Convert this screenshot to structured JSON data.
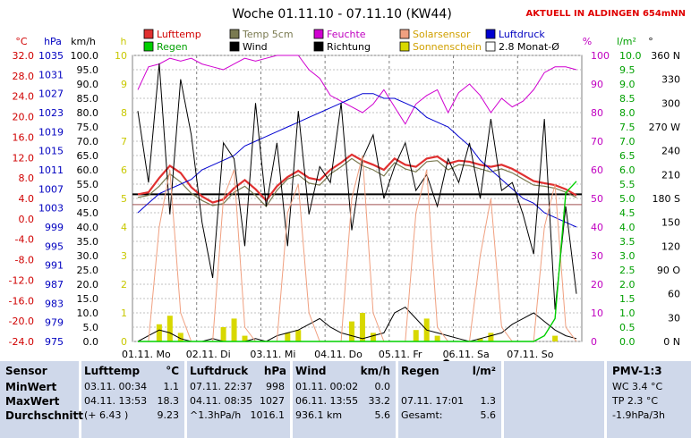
{
  "chart_data": {
    "type": "line",
    "title": "Woche 01.11.10 - 07.11.10 (KW44)",
    "annotation": "AKTUELL IN ALDINGEN 654mNN",
    "x_labels": [
      "01.11.  Mo",
      "02.11.  Di",
      "03.11.  Mi",
      "04.11.  Do",
      "05.11.  Fr",
      "06.11.  Sa",
      "07.11.  So"
    ],
    "axes": {
      "temp": {
        "unit": "°C",
        "ticks": [
          "32.0",
          "28.0",
          "24.0",
          "20.0",
          "16.0",
          "12.0",
          "8.0",
          "4.0",
          "0.0",
          "-4.0",
          "-8.0",
          "-12.0",
          "-16.0",
          "-20.0",
          "-24.0"
        ],
        "color": "#d00000"
      },
      "pressure": {
        "unit": "hPa",
        "ticks": [
          "1035",
          "1031",
          "1027",
          "1023",
          "1019",
          "1015",
          "1011",
          "1007",
          "1003",
          "999",
          "995",
          "991",
          "987",
          "983",
          "979",
          "975"
        ],
        "color": "#0000c0"
      },
      "wind": {
        "unit": "km/h",
        "ticks": [
          "100.0",
          "95.0",
          "90.0",
          "85.0",
          "80.0",
          "75.0",
          "70.0",
          "65.0",
          "60.0",
          "55.0",
          "50.0",
          "45.0",
          "40.0",
          "35.0",
          "30.0",
          "25.0",
          "20.0",
          "15.0",
          "10.0",
          "5.0",
          "0.0"
        ],
        "color": "#000000"
      },
      "sun": {
        "unit": "h",
        "ticks": [
          "10",
          "9",
          "8",
          "7",
          "6",
          "5",
          "4",
          "3",
          "2",
          "1",
          "0"
        ],
        "color": "#c8c800"
      },
      "humidity": {
        "unit": "%",
        "ticks": [
          "100",
          "90",
          "80",
          "70",
          "60",
          "50",
          "40",
          "30",
          "20",
          "10",
          "0"
        ],
        "color": "#c000c0"
      },
      "rain": {
        "unit": "l/m²",
        "ticks": [
          "10.0",
          "9.5",
          "9.0",
          "8.5",
          "8.0",
          "7.5",
          "7.0",
          "6.5",
          "6.0",
          "5.5",
          "5.0",
          "4.5",
          "4.0",
          "3.5",
          "3.0",
          "2.5",
          "2.0",
          "1.5",
          "1.0",
          "0.5",
          "0.0"
        ],
        "color": "#00a000"
      },
      "direction": {
        "unit": "°",
        "ticks": [
          "360 N",
          "330",
          "300",
          "270 W",
          "240",
          "210",
          "180 S",
          "150",
          "120",
          "90 O",
          "60",
          "30",
          "0 N"
        ],
        "color": "#000000"
      }
    },
    "legend": [
      {
        "name": "Lufttemp",
        "color": "#e03030"
      },
      {
        "name": "Temp 5cm",
        "color": "#7a7a50"
      },
      {
        "name": "Feuchte",
        "color": "#d000d0"
      },
      {
        "name": "Solarsensor",
        "color": "#f0a080"
      },
      {
        "name": "Luftdruck",
        "color": "#0000d0"
      },
      {
        "name": "Regen",
        "color": "#00d000"
      },
      {
        "name": "Wind",
        "color": "#000000"
      },
      {
        "name": "Richtung",
        "color": "#000000"
      },
      {
        "name": "Sonnenschein",
        "color": "#d8d800"
      },
      {
        "name": "2.8 Monat-Ø",
        "color": "#ffffff"
      }
    ],
    "series": [
      {
        "name": "Lufttemp",
        "unit": "°C",
        "values": [
          4.8,
          5.2,
          8.0,
          10.4,
          9.0,
          6.2,
          4.4,
          3.2,
          3.8,
          6.0,
          7.6,
          5.8,
          3.6,
          6.4,
          8.2,
          9.4,
          8.0,
          7.6,
          9.6,
          11.0,
          12.6,
          11.4,
          10.6,
          9.6,
          11.8,
          10.6,
          10.2,
          11.8,
          12.2,
          10.8,
          11.4,
          11.2,
          10.6,
          10.2,
          10.6,
          9.8,
          8.6,
          7.4,
          7.0,
          6.6,
          5.8,
          4.6
        ]
      },
      {
        "name": "Temp 5cm",
        "unit": "°C",
        "values": [
          4.2,
          4.6,
          6.4,
          8.8,
          7.2,
          5.0,
          3.6,
          2.6,
          3.0,
          5.2,
          6.4,
          4.6,
          2.4,
          5.6,
          7.8,
          8.6,
          7.0,
          6.6,
          8.8,
          10.2,
          11.8,
          10.4,
          9.6,
          8.4,
          11.0,
          9.8,
          9.2,
          11.2,
          11.4,
          9.6,
          10.6,
          10.4,
          9.8,
          9.2,
          9.8,
          9.0,
          7.8,
          6.6,
          6.4,
          6.0,
          5.2,
          4.2
        ]
      },
      {
        "name": "Feuchte",
        "unit": "%",
        "values": [
          88,
          96,
          97,
          99,
          98,
          99,
          97,
          96,
          95,
          97,
          99,
          98,
          99,
          100,
          100,
          100,
          95,
          92,
          86,
          84,
          82,
          80,
          83,
          88,
          82,
          76,
          83,
          86,
          88,
          80,
          87,
          90,
          86,
          80,
          85,
          82,
          84,
          88,
          94,
          96,
          96,
          95
        ]
      },
      {
        "name": "Luftdruck",
        "unit": "hPa",
        "values": [
          1002,
          1004,
          1006,
          1007,
          1008,
          1009,
          1011,
          1012,
          1013,
          1014,
          1016,
          1017,
          1018,
          1019,
          1020,
          1021,
          1022,
          1023,
          1024,
          1025,
          1026,
          1027,
          1027,
          1026,
          1026,
          1025,
          1024,
          1022,
          1021,
          1020,
          1018,
          1016,
          1013,
          1011,
          1009,
          1007,
          1005,
          1004,
          1002,
          1001,
          1000,
          999
        ]
      },
      {
        "name": "Wind",
        "unit": "km/h",
        "values": [
          0,
          2,
          4,
          3,
          1,
          0,
          0,
          1,
          0,
          0,
          0,
          1,
          0,
          2,
          3,
          4,
          6,
          8,
          5,
          3,
          2,
          1,
          2,
          3,
          10,
          12,
          8,
          4,
          3,
          2,
          1,
          0,
          1,
          2,
          3,
          6,
          8,
          10,
          7,
          4,
          2,
          1
        ]
      },
      {
        "name": "Richtung",
        "unit": "°",
        "values": [
          290,
          200,
          350,
          160,
          330,
          260,
          150,
          80,
          250,
          230,
          120,
          300,
          170,
          250,
          120,
          290,
          160,
          220,
          200,
          300,
          140,
          230,
          260,
          180,
          220,
          250,
          190,
          210,
          170,
          230,
          200,
          250,
          180,
          280,
          190,
          200,
          160,
          110,
          280,
          40,
          170,
          60
        ]
      },
      {
        "name": "Solarsensor",
        "unit": "%",
        "values": [
          0,
          0,
          40,
          60,
          10,
          0,
          0,
          0,
          50,
          60,
          5,
          0,
          0,
          0,
          45,
          55,
          10,
          0,
          0,
          0,
          50,
          65,
          10,
          0,
          0,
          0,
          45,
          60,
          5,
          0,
          0,
          0,
          30,
          50,
          5,
          0,
          0,
          0,
          40,
          55,
          5,
          0
        ]
      },
      {
        "name": "Sonnenschein",
        "unit": "h",
        "values": [
          0,
          0,
          0.6,
          0.9,
          0.3,
          0,
          0,
          0,
          0.5,
          0.8,
          0.2,
          0,
          0,
          0,
          0.3,
          0.4,
          0,
          0,
          0,
          0,
          0.7,
          1.0,
          0.3,
          0,
          0,
          0,
          0.4,
          0.8,
          0.2,
          0,
          0,
          0,
          0.1,
          0.3,
          0,
          0,
          0,
          0,
          0,
          0.2,
          0,
          0
        ]
      },
      {
        "name": "Regen",
        "unit": "l/m²",
        "values": [
          0,
          0,
          0,
          0,
          0,
          0,
          0,
          0,
          0,
          0,
          0,
          0,
          0,
          0,
          0,
          0,
          0,
          0,
          0,
          0,
          0,
          0,
          0,
          0,
          0,
          0,
          0,
          0,
          0,
          0,
          0,
          0,
          0,
          0,
          0,
          0,
          0,
          0,
          0.2,
          0.8,
          5.2,
          5.6
        ]
      }
    ]
  },
  "table": {
    "headers": [
      "Sensor",
      "Lufttemp",
      "°C",
      "Luftdruck",
      "hPa",
      "Wind",
      "km/h",
      "Regen",
      "l/m²",
      "PMV-1:3"
    ],
    "rows": [
      {
        "label": "MinWert",
        "temp_time": "03.11.  00:34",
        "temp_val": "1.1",
        "press_time": "07.11.  22:37",
        "press_val": "998",
        "wind_time": "01.11.  00:02",
        "wind_val": "0.0",
        "rain_time": "",
        "rain_val": "",
        "pmv": "WC 3.4 °C"
      },
      {
        "label": "MaxWert",
        "temp_time": "04.11.  13:53",
        "temp_val": "18.3",
        "press_time": "04.11.  08:35",
        "press_val": "1027",
        "wind_time": "06.11.  13:55",
        "wind_val": "33.2",
        "rain_time": "07.11.  17:01",
        "rain_val": "1.3",
        "pmv": "TP 2.3 °C"
      },
      {
        "label": "Durchschnitt",
        "temp_time": "(+ 6.43 )",
        "temp_val": "9.23",
        "press_time": "^1.3hPa/h",
        "press_val": "1016.1",
        "wind_time": "936.1 km",
        "wind_val": "5.6",
        "rain_time": "Gesamt:",
        "rain_val": "5.6",
        "pmv": "-1.9hPa/3h"
      }
    ]
  }
}
